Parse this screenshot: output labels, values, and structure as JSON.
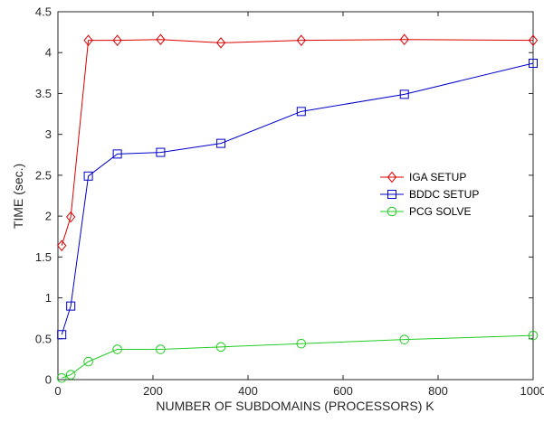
{
  "chart_data": {
    "type": "line",
    "xlabel": "NUMBER OF SUBDOMAINS (PROCESSORS) K",
    "ylabel": "TIME (sec.)",
    "xlim": [
      0,
      1000
    ],
    "ylim": [
      0,
      4.5
    ],
    "xticks": [
      0,
      200,
      400,
      600,
      800,
      1000
    ],
    "xtick_labels": [
      "0",
      "200",
      "400",
      "600",
      "800",
      "1000"
    ],
    "yticks": [
      0,
      0.5,
      1,
      1.5,
      2,
      2.5,
      3,
      3.5,
      4,
      4.5
    ],
    "ytick_labels": [
      "0",
      "0.5",
      "1",
      "1.5",
      "2",
      "2.5",
      "3",
      "3.5",
      "4",
      "4.5"
    ],
    "grid": false,
    "legend_position": "right",
    "series": [
      {
        "name": "IGA SETUP",
        "color": "#dd0000",
        "marker": "diamond",
        "x": [
          8,
          27,
          64,
          125,
          216,
          343,
          512,
          729,
          1000
        ],
        "y": [
          1.64,
          1.99,
          4.15,
          4.15,
          4.16,
          4.12,
          4.15,
          4.16,
          4.15
        ]
      },
      {
        "name": "BDDC SETUP",
        "color": "#0000cc",
        "marker": "square",
        "x": [
          8,
          27,
          64,
          125,
          216,
          343,
          512,
          729,
          1000
        ],
        "y": [
          0.55,
          0.9,
          2.49,
          2.76,
          2.78,
          2.89,
          3.28,
          3.49,
          3.87
        ]
      },
      {
        "name": "PCG SOLVE",
        "color": "#22cc22",
        "marker": "circle",
        "x": [
          8,
          27,
          64,
          125,
          216,
          343,
          512,
          729,
          1000
        ],
        "y": [
          0.02,
          0.06,
          0.22,
          0.37,
          0.37,
          0.4,
          0.44,
          0.49,
          0.54
        ]
      }
    ]
  }
}
